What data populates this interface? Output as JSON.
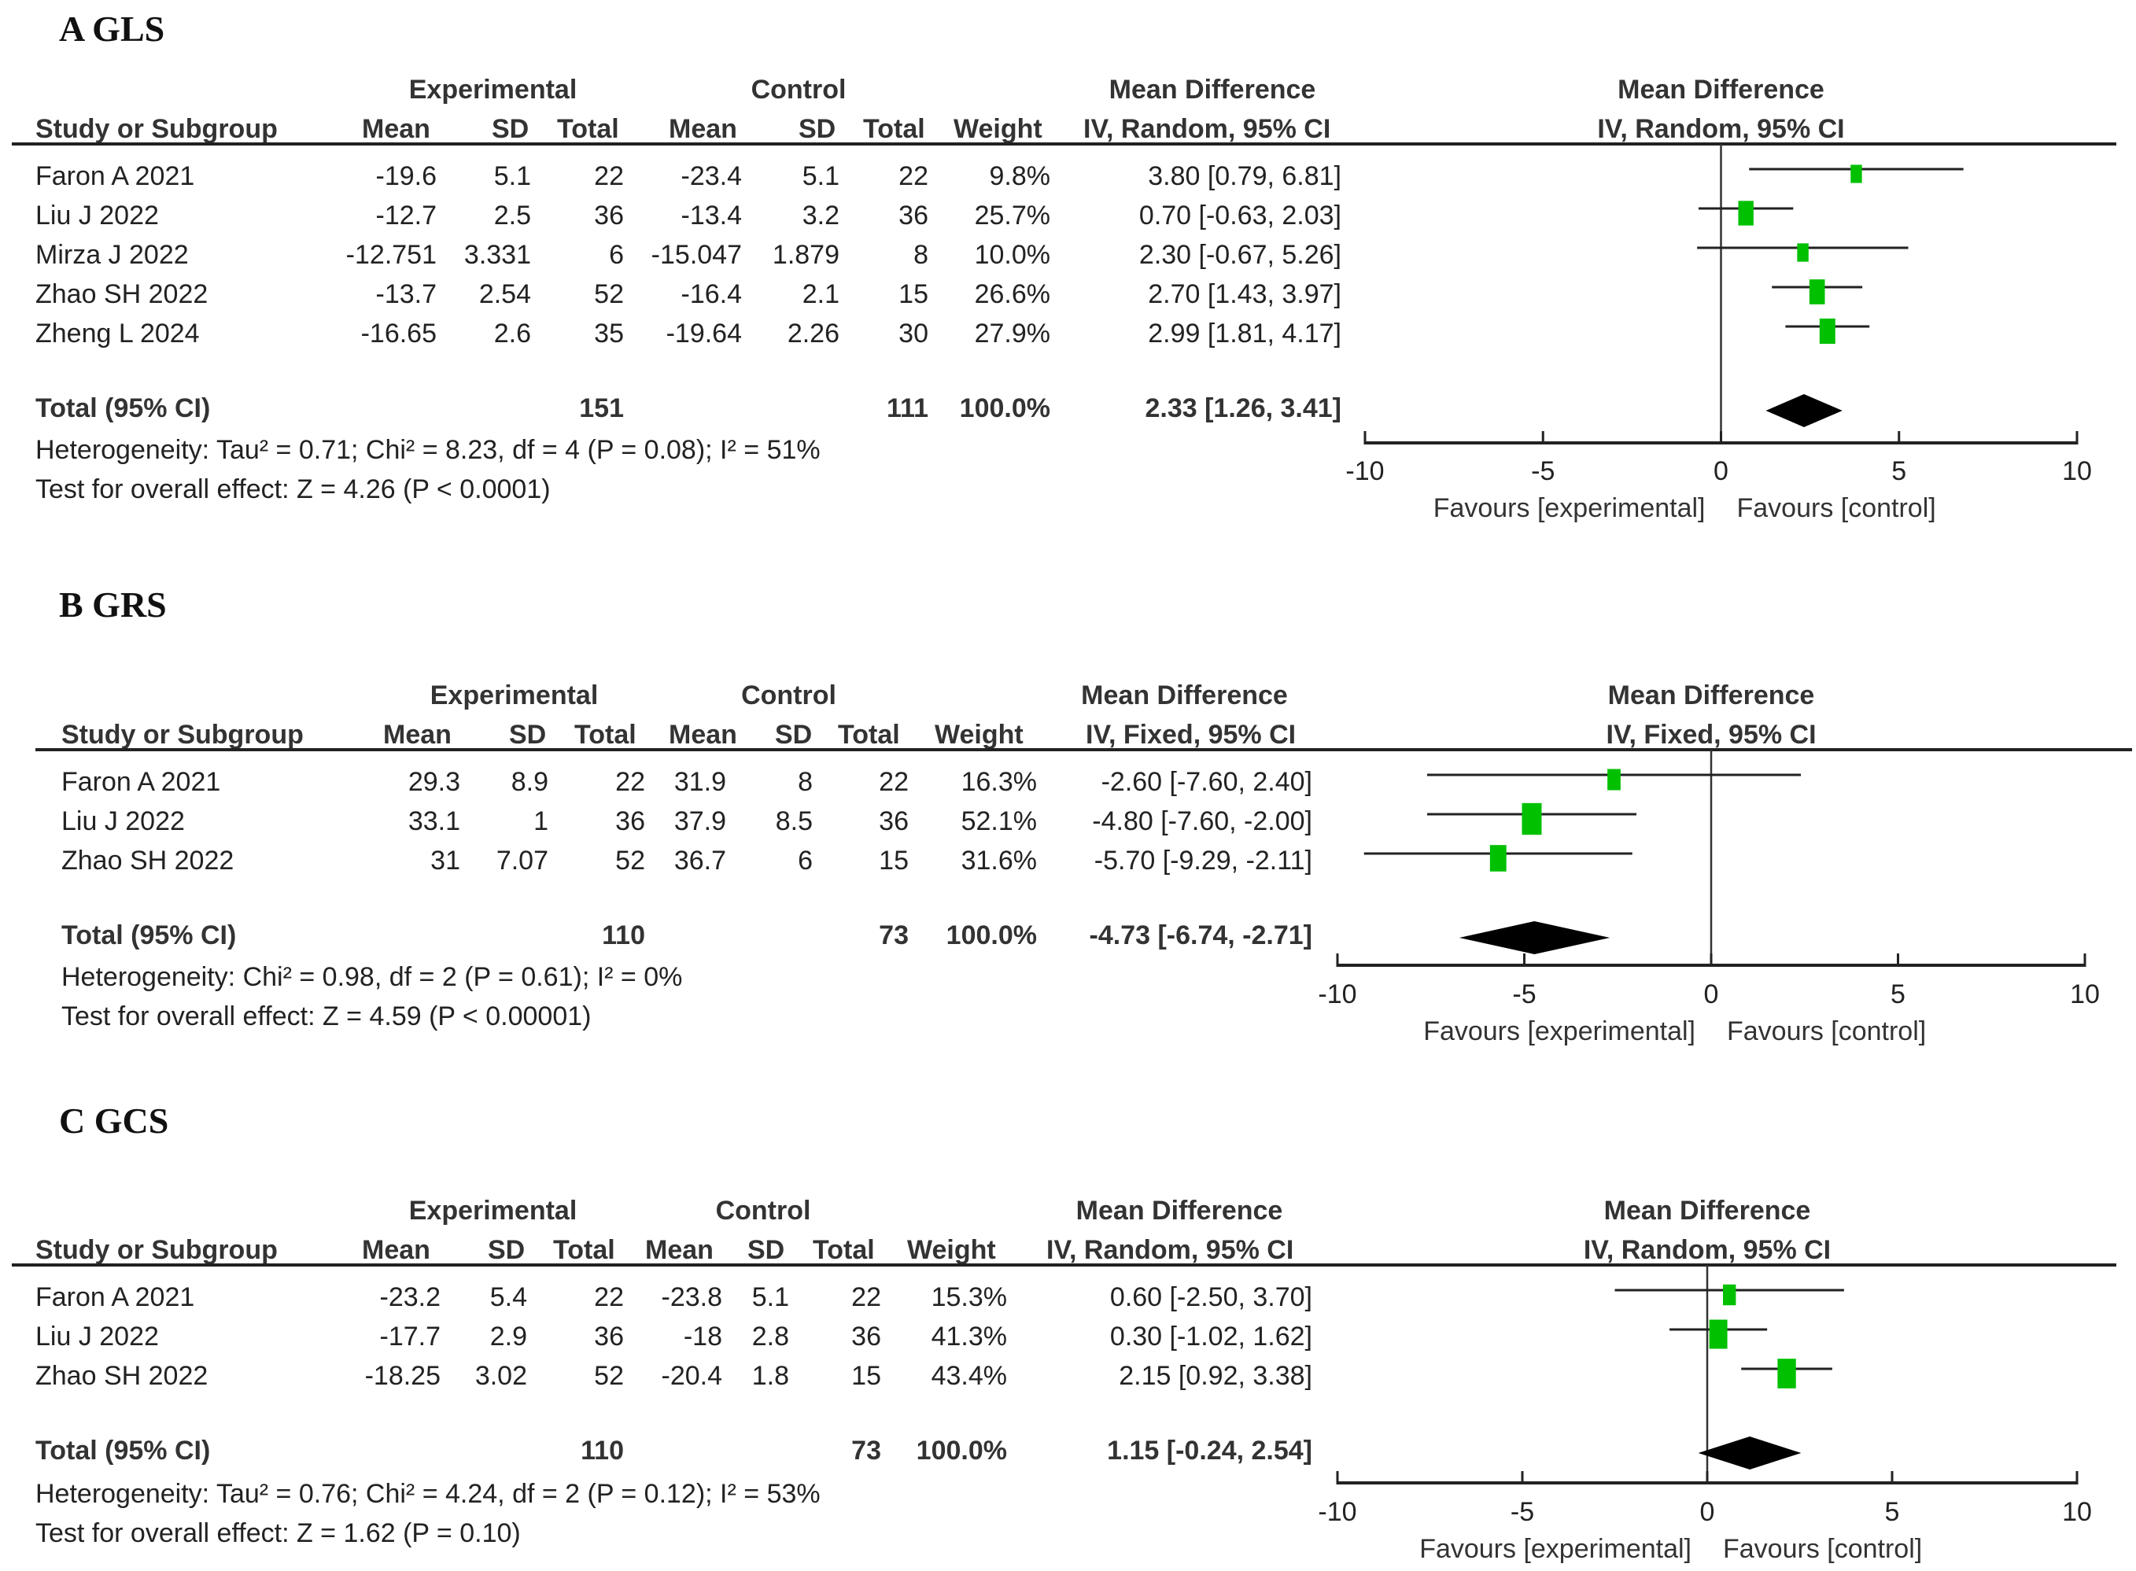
{
  "chart_data": [
    {
      "type": "forest",
      "panel": "A GLS",
      "title": "A GLS",
      "group_headers": {
        "experimental": "Experimental",
        "control": "Control",
        "md": "Mean Difference",
        "plot": "Mean Difference"
      },
      "columns": [
        "Study or Subgroup",
        "Mean",
        "SD",
        "Total",
        "Mean",
        "SD",
        "Total",
        "Weight",
        "IV, Random, 95% CI"
      ],
      "plot_header": "IV, Random, 95% CI",
      "studies": [
        {
          "name": "Faron A 2021",
          "e_mean": "-19.6",
          "e_sd": "5.1",
          "e_total": "22",
          "c_mean": "-23.4",
          "c_sd": "5.1",
          "c_total": "22",
          "weight": "9.8%",
          "weight_pct": 9.8,
          "ci_text": "3.80 [0.79, 6.81]",
          "md": 3.8,
          "lo": 0.79,
          "hi": 6.81
        },
        {
          "name": "Liu J 2022",
          "e_mean": "-12.7",
          "e_sd": "2.5",
          "e_total": "36",
          "c_mean": "-13.4",
          "c_sd": "3.2",
          "c_total": "36",
          "weight": "25.7%",
          "weight_pct": 25.7,
          "ci_text": "0.70 [-0.63, 2.03]",
          "md": 0.7,
          "lo": -0.63,
          "hi": 2.03
        },
        {
          "name": "Mirza J 2022",
          "e_mean": "-12.751",
          "e_sd": "3.331",
          "e_total": "6",
          "c_mean": "-15.047",
          "c_sd": "1.879",
          "c_total": "8",
          "weight": "10.0%",
          "weight_pct": 10.0,
          "ci_text": "2.30 [-0.67, 5.26]",
          "md": 2.3,
          "lo": -0.67,
          "hi": 5.26
        },
        {
          "name": "Zhao SH 2022",
          "e_mean": "-13.7",
          "e_sd": "2.54",
          "e_total": "52",
          "c_mean": "-16.4",
          "c_sd": "2.1",
          "c_total": "15",
          "weight": "26.6%",
          "weight_pct": 26.6,
          "ci_text": "2.70 [1.43, 3.97]",
          "md": 2.7,
          "lo": 1.43,
          "hi": 3.97
        },
        {
          "name": "Zheng L 2024",
          "e_mean": "-16.65",
          "e_sd": "2.6",
          "e_total": "35",
          "c_mean": "-19.64",
          "c_sd": "2.26",
          "c_total": "30",
          "weight": "27.9%",
          "weight_pct": 27.9,
          "ci_text": "2.99 [1.81, 4.17]",
          "md": 2.99,
          "lo": 1.81,
          "hi": 4.17
        }
      ],
      "total": {
        "label": "Total (95% CI)",
        "e_total": "151",
        "c_total": "111",
        "weight": "100.0%",
        "ci_text": "2.33 [1.26, 3.41]",
        "md": 2.33,
        "lo": 1.26,
        "hi": 3.41
      },
      "heterogeneity": "Heterogeneity: Tau² = 0.71; Chi² = 8.23, df = 4 (P = 0.08); I² = 51%",
      "overall_effect": "Test for overall effect: Z = 4.26 (P < 0.0001)",
      "xlim": [
        -10,
        10
      ],
      "xticks": [
        "-10",
        "-5",
        "0",
        "5",
        "10"
      ],
      "xtick_values": [
        -10,
        -5,
        0,
        5,
        10
      ],
      "favours_left": "Favours [experimental]",
      "favours_right": "Favours [control]"
    },
    {
      "type": "forest",
      "panel": "B GRS",
      "title": "B GRS",
      "group_headers": {
        "experimental": "Experimental",
        "control": "Control",
        "md": "Mean Difference",
        "plot": "Mean Difference"
      },
      "columns": [
        "Study or Subgroup",
        "Mean",
        "SD",
        "Total",
        "Mean",
        "SD",
        "Total",
        "Weight",
        "IV, Fixed, 95% CI"
      ],
      "plot_header": "IV, Fixed, 95% CI",
      "studies": [
        {
          "name": "Faron A 2021",
          "e_mean": "29.3",
          "e_sd": "8.9",
          "e_total": "22",
          "c_mean": "31.9",
          "c_sd": "8",
          "c_total": "22",
          "weight": "16.3%",
          "weight_pct": 16.3,
          "ci_text": "-2.60 [-7.60, 2.40]",
          "md": -2.6,
          "lo": -7.6,
          "hi": 2.4
        },
        {
          "name": "Liu J 2022",
          "e_mean": "33.1",
          "e_sd": "1",
          "e_total": "36",
          "c_mean": "37.9",
          "c_sd": "8.5",
          "c_total": "36",
          "weight": "52.1%",
          "weight_pct": 52.1,
          "ci_text": "-4.80 [-7.60, -2.00]",
          "md": -4.8,
          "lo": -7.6,
          "hi": -2.0
        },
        {
          "name": "Zhao SH 2022",
          "e_mean": "31",
          "e_sd": "7.07",
          "e_total": "52",
          "c_mean": "36.7",
          "c_sd": "6",
          "c_total": "15",
          "weight": "31.6%",
          "weight_pct": 31.6,
          "ci_text": "-5.70 [-9.29, -2.11]",
          "md": -5.7,
          "lo": -9.29,
          "hi": -2.11
        }
      ],
      "total": {
        "label": "Total (95% CI)",
        "e_total": "110",
        "c_total": "73",
        "weight": "100.0%",
        "ci_text": "-4.73 [-6.74, -2.71]",
        "md": -4.73,
        "lo": -6.74,
        "hi": -2.71
      },
      "heterogeneity": "Heterogeneity: Chi² = 0.98, df = 2 (P = 0.61); I² = 0%",
      "overall_effect": "Test for overall effect: Z = 4.59 (P < 0.00001)",
      "xlim": [
        -10,
        10
      ],
      "xticks": [
        "-10",
        "-5",
        "0",
        "5",
        "10"
      ],
      "xtick_values": [
        -10,
        -5,
        0,
        5,
        10
      ],
      "favours_left": "Favours [experimental]",
      "favours_right": "Favours [control]"
    },
    {
      "type": "forest",
      "panel": "C GCS",
      "title": "C GCS",
      "group_headers": {
        "experimental": "Experimental",
        "control": "Control",
        "md": "Mean Difference",
        "plot": "Mean Difference"
      },
      "columns": [
        "Study or Subgroup",
        "Mean",
        "SD",
        "Total",
        "Mean",
        "SD",
        "Total",
        "Weight",
        "IV, Random, 95% CI"
      ],
      "plot_header": "IV, Random, 95% CI",
      "studies": [
        {
          "name": "Faron A 2021",
          "e_mean": "-23.2",
          "e_sd": "5.4",
          "e_total": "22",
          "c_mean": "-23.8",
          "c_sd": "5.1",
          "c_total": "22",
          "weight": "15.3%",
          "weight_pct": 15.3,
          "ci_text": "0.60 [-2.50, 3.70]",
          "md": 0.6,
          "lo": -2.5,
          "hi": 3.7
        },
        {
          "name": "Liu J 2022",
          "e_mean": "-17.7",
          "e_sd": "2.9",
          "e_total": "36",
          "c_mean": "-18",
          "c_sd": "2.8",
          "c_total": "36",
          "weight": "41.3%",
          "weight_pct": 41.3,
          "ci_text": "0.30 [-1.02, 1.62]",
          "md": 0.3,
          "lo": -1.02,
          "hi": 1.62
        },
        {
          "name": "Zhao SH 2022",
          "e_mean": "-18.25",
          "e_sd": "3.02",
          "e_total": "52",
          "c_mean": "-20.4",
          "c_sd": "1.8",
          "c_total": "15",
          "weight": "43.4%",
          "weight_pct": 43.4,
          "ci_text": "2.15 [0.92, 3.38]",
          "md": 2.15,
          "lo": 0.92,
          "hi": 3.38
        }
      ],
      "total": {
        "label": "Total (95% CI)",
        "e_total": "110",
        "c_total": "73",
        "weight": "100.0%",
        "ci_text": "1.15 [-0.24, 2.54]",
        "md": 1.15,
        "lo": -0.24,
        "hi": 2.54
      },
      "heterogeneity": "Heterogeneity: Tau² = 0.76; Chi² = 4.24, df = 2 (P = 0.12); I² = 53%",
      "overall_effect": "Test for overall effect: Z = 1.62 (P = 0.10)",
      "xlim": [
        -10,
        10
      ],
      "xticks": [
        "-10",
        "-5",
        "0",
        "5",
        "10"
      ],
      "xtick_values": [
        -10,
        -5,
        0,
        5,
        10
      ],
      "favours_left": "Favours [experimental]",
      "favours_right": "Favours [control]"
    }
  ],
  "colors": {
    "study_marker": "#00c000",
    "summary_diamond": "#000000",
    "lines": "#333333"
  }
}
